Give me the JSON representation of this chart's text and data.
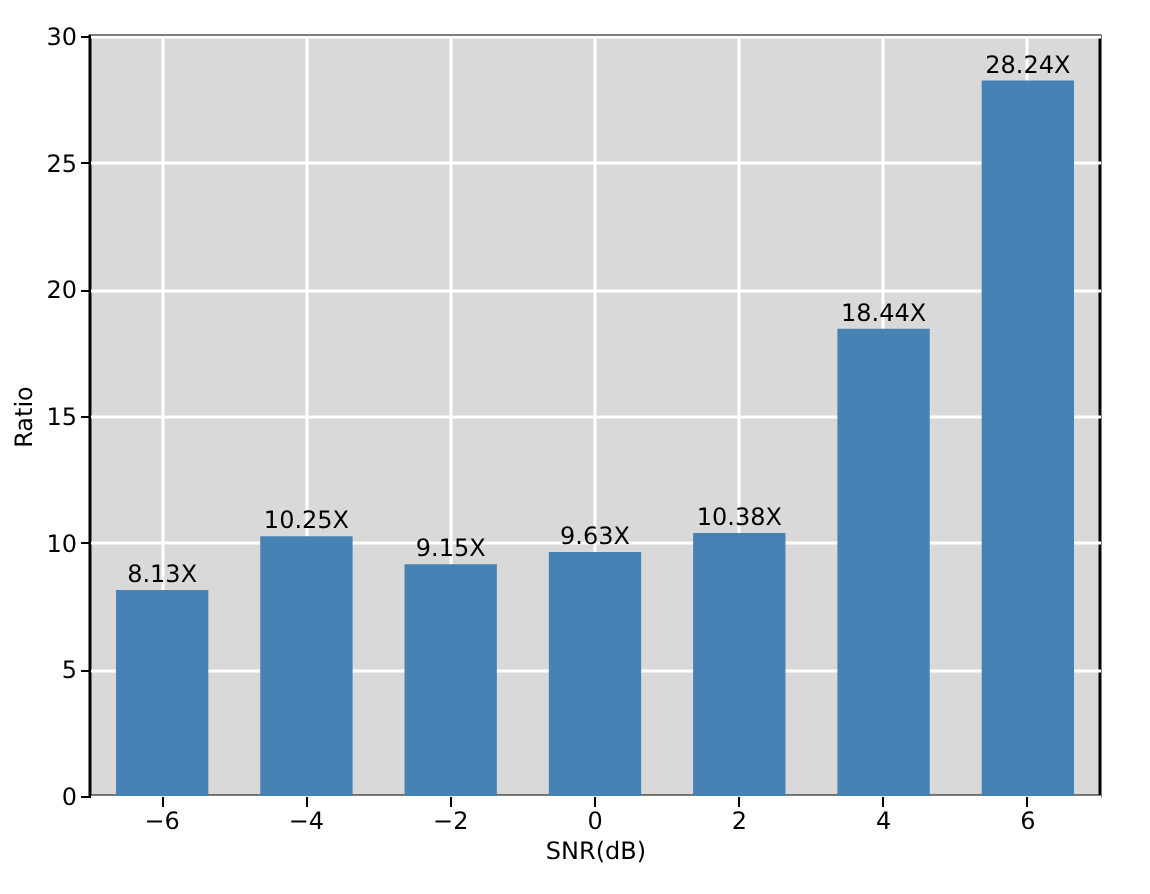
{
  "chart_data": {
    "type": "bar",
    "xlabel": "SNR(dB)",
    "ylabel": "Ratio",
    "categories": [
      "−6",
      "−4",
      "−2",
      "0",
      "2",
      "4",
      "6"
    ],
    "values": [
      8.13,
      10.25,
      9.15,
      9.63,
      10.38,
      18.44,
      28.24
    ],
    "value_labels": [
      "8.13X",
      "10.25X",
      "9.15X",
      "9.63X",
      "10.38X",
      "18.44X",
      "28.24X"
    ],
    "color": "#4682b4",
    "ylim": [
      0,
      30
    ],
    "yticks": [
      0,
      5,
      10,
      15,
      20,
      25,
      30
    ],
    "grid": true
  }
}
